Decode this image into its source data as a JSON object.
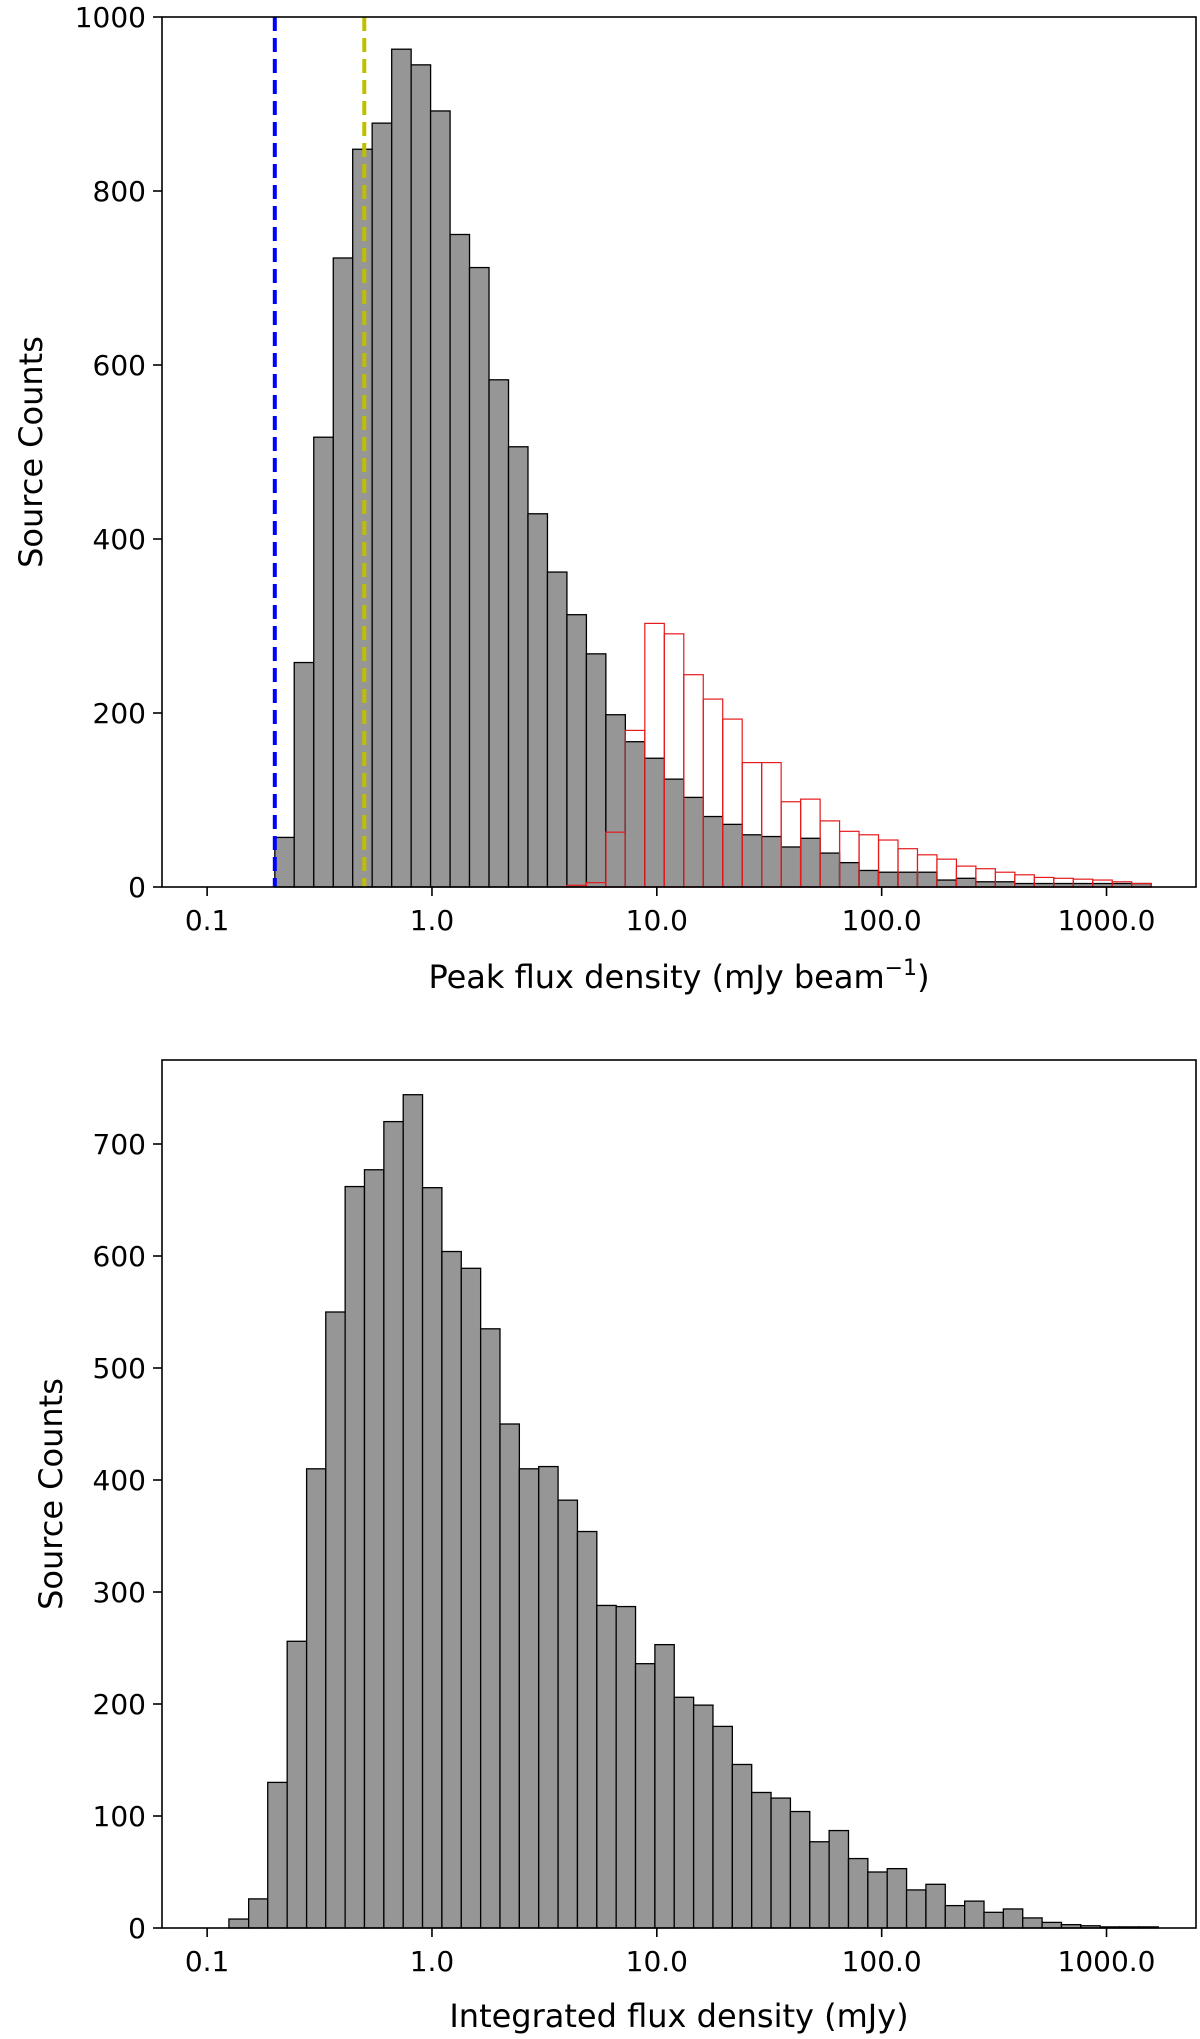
{
  "chart_data": [
    {
      "type": "bar",
      "xscale": "log",
      "xlim": [
        0.063,
        2500
      ],
      "ylim": [
        0,
        1000
      ],
      "xticks": [
        "0.1",
        "1.0",
        "10.0",
        "100.0",
        "1000.0"
      ],
      "yticks": [
        "0",
        "200",
        "400",
        "600",
        "800",
        "1000"
      ],
      "xlabel": "Peak flux density (mJy beam",
      "xlabel_sup": "−1",
      "xlabel_end": ")",
      "ylabel": "Source Counts",
      "bin_edges": [
        0.2,
        0.244,
        0.298,
        0.364,
        0.444,
        0.542,
        0.662,
        0.808,
        0.986,
        1.204,
        1.469,
        1.794,
        2.19,
        2.673,
        3.263,
        3.983,
        4.862,
        5.935,
        7.245,
        8.844,
        10.796,
        13.179,
        16.088,
        19.638,
        23.973,
        29.263,
        35.722,
        43.607,
        53.232,
        64.981,
        79.323,
        96.83,
        118.202,
        144.291,
        176.138,
        215.015,
        262.472,
        320.404,
        391.121,
        477.447,
        582.824,
        711.462,
        868.493,
        1060.183,
        1294.179,
        1579.822
      ],
      "series": [
        {
          "color": "#969696",
          "edgecolor": "#000000",
          "values": [
            57,
            258,
            517,
            723,
            848,
            878,
            963,
            945,
            892,
            750,
            712,
            583,
            506,
            429,
            362,
            313,
            268,
            198,
            167,
            148,
            124,
            103,
            81,
            72,
            60,
            58,
            46,
            56,
            39,
            28,
            19,
            17,
            17,
            17,
            8,
            10,
            6,
            6,
            4,
            4,
            4,
            4,
            4,
            4,
            4
          ]
        },
        {
          "color": "none",
          "edgecolor": "#e41a1c",
          "values": [
            0,
            0,
            0,
            0,
            0,
            0,
            0,
            0,
            0,
            0,
            0,
            0,
            0,
            0,
            0,
            2,
            5,
            63,
            180,
            303,
            291,
            244,
            216,
            193,
            143,
            143,
            98,
            101,
            76,
            64,
            60,
            54,
            44,
            37,
            32,
            24,
            21,
            17,
            14,
            11,
            10,
            9,
            8,
            6,
            4
          ]
        }
      ],
      "vlines": [
        {
          "x": 0.2,
          "color": "#0000ff",
          "style": "dashed"
        },
        {
          "x": 0.5,
          "color": "#bfbf00",
          "style": "dashed"
        }
      ],
      "grid": false,
      "legend": "none"
    },
    {
      "type": "bar",
      "xscale": "log",
      "xlim": [
        0.063,
        2500
      ],
      "ylim": [
        0,
        775
      ],
      "xticks": [
        "0.1",
        "1.0",
        "10.0",
        "100.0",
        "1000.0"
      ],
      "yticks": [
        "0",
        "100",
        "200",
        "300",
        "400",
        "500",
        "600",
        "700"
      ],
      "xlabel": "Integrated flux density (mJy)",
      "ylabel": "Source Counts",
      "bin_edges": [
        0.125,
        0.153,
        0.186,
        0.227,
        0.277,
        0.337,
        0.411,
        0.501,
        0.611,
        0.745,
        0.908,
        1.107,
        1.35,
        1.646,
        2.007,
        2.447,
        2.984,
        3.638,
        4.436,
        5.409,
        6.595,
        8.041,
        9.804,
        11.954,
        14.576,
        17.772,
        21.669,
        26.42,
        32.214,
        39.277,
        47.89,
        58.391,
        71.195,
        86.806,
        105.84,
        129.048,
        157.345,
        191.847,
        233.914,
        285.206,
        347.745,
        424.0,
        516.972,
        630.33,
        768.545,
        937.067,
        1142.545,
        1393.08,
        1698.55
      ],
      "series": [
        {
          "color": "#969696",
          "edgecolor": "#000000",
          "values": [
            8,
            26,
            130,
            256,
            410,
            550,
            662,
            677,
            720,
            744,
            661,
            604,
            589,
            535,
            450,
            410,
            412,
            382,
            354,
            288,
            287,
            236,
            253,
            206,
            199,
            180,
            146,
            121,
            116,
            104,
            77,
            87,
            62,
            50,
            53,
            34,
            39,
            20,
            24,
            14,
            17,
            9,
            5,
            3,
            2,
            1,
            1,
            1
          ]
        }
      ],
      "grid": false,
      "legend": "none"
    }
  ]
}
